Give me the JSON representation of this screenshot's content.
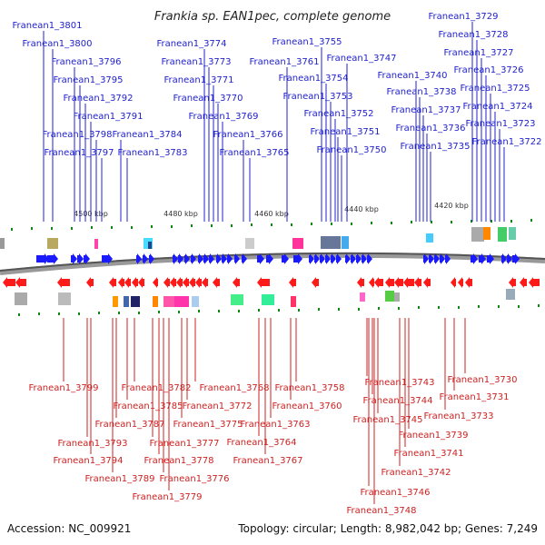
{
  "title": "Frankia sp. EAN1pec, complete genome",
  "footer": {
    "accession": "Accession: NC_009921",
    "summary": "Topology: circular; Length: 8,982,042 bp; Genes: 7,249"
  },
  "ticks": [
    "4500 kbp",
    "4480 kbp",
    "4460 kbp",
    "4440 kbp",
    "4420 kbp"
  ],
  "colors": {
    "forward": "#1a1aff",
    "reverse": "#ff1a1a",
    "top_label": "#2222cc",
    "bottom_label": "#cc2222"
  },
  "top_genes": [
    "Franean1_3801",
    "Franean1_3800",
    "Franean1_3796",
    "Franean1_3795",
    "Franean1_3792",
    "Franean1_3791",
    "Franean1_3798",
    "Franean1_3797",
    "Franean1_3784",
    "Franean1_3783",
    "Franean1_3774",
    "Franean1_3773",
    "Franean1_3771",
    "Franean1_3770",
    "Franean1_3769",
    "Franean1_3766",
    "Franean1_3765",
    "Franean1_3761",
    "Franean1_3755",
    "Franean1_3747",
    "Franean1_3754",
    "Franean1_3753",
    "Franean1_3752",
    "Franean1_3751",
    "Franean1_3750",
    "Franean1_3740",
    "Franean1_3738",
    "Franean1_3737",
    "Franean1_3736",
    "Franean1_3735",
    "Franean1_3729",
    "Franean1_3728",
    "Franean1_3727",
    "Franean1_3726",
    "Franean1_3725",
    "Franean1_3724",
    "Franean1_3723",
    "Franean1_3722"
  ],
  "bottom_genes": [
    "Franean1_3799",
    "Franean1_3793",
    "Franean1_3794",
    "Franean1_3789",
    "Franean1_3787",
    "Franean1_3785",
    "Franean1_3782",
    "Franean1_3777",
    "Franean1_3778",
    "Franean1_3776",
    "Franean1_3779",
    "Franean1_3775",
    "Franean1_3772",
    "Franean1_3768",
    "Franean1_3764",
    "Franean1_3767",
    "Franean1_3763",
    "Franean1_3760",
    "Franean1_3758",
    "Franean1_3743",
    "Franean1_3744",
    "Franean1_3745",
    "Franean1_3746",
    "Franean1_3748",
    "Franean1_3739",
    "Franean1_3741",
    "Franean1_3742",
    "Franean1_3730",
    "Franean1_3731",
    "Franean1_3733"
  ]
}
